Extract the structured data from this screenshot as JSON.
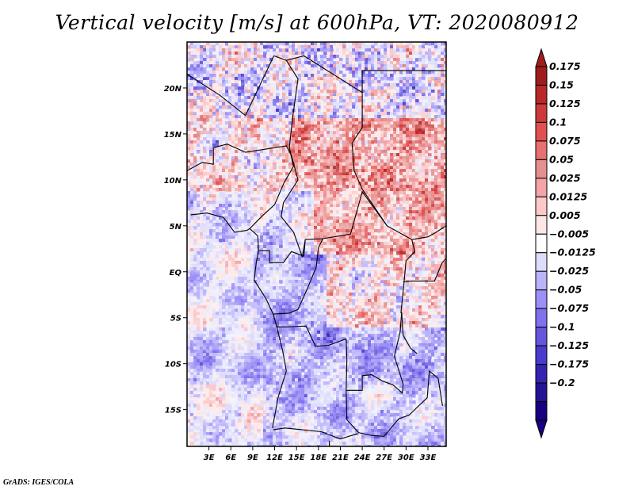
{
  "title": "Vertical velocity [m/s] at 600hPa, VT: 2020080912",
  "credit": "GrADS: IGES/COLA",
  "map": {
    "variable": "Vertical velocity",
    "units": "m/s",
    "level": "600hPa",
    "valid_time": "2020080912",
    "lat_range": [
      -19,
      25
    ],
    "lon_range": [
      0,
      35.5
    ],
    "lat_ticks": [
      {
        "value": 20,
        "label": "20N"
      },
      {
        "value": 15,
        "label": "15N"
      },
      {
        "value": 10,
        "label": "10N"
      },
      {
        "value": 5,
        "label": "5N"
      },
      {
        "value": 0,
        "label": "EQ"
      },
      {
        "value": -5,
        "label": "5S"
      },
      {
        "value": -10,
        "label": "10S"
      },
      {
        "value": -15,
        "label": "15S"
      }
    ],
    "lon_ticks": [
      {
        "value": 3,
        "label": "3E"
      },
      {
        "value": 6,
        "label": "6E"
      },
      {
        "value": 9,
        "label": "9E"
      },
      {
        "value": 12,
        "label": "12E"
      },
      {
        "value": 15,
        "label": "15E"
      },
      {
        "value": 18,
        "label": "18E"
      },
      {
        "value": 21,
        "label": "21E"
      },
      {
        "value": 24,
        "label": "24E"
      },
      {
        "value": 27,
        "label": "27E"
      },
      {
        "value": 30,
        "label": "30E"
      },
      {
        "value": 33,
        "label": "33E"
      }
    ]
  },
  "colorbar": {
    "labels": [
      "0.175",
      "0.15",
      "0.125",
      "0.1",
      "0.075",
      "0.05",
      "0.025",
      "0.0125",
      "0.005",
      "-0.005",
      "-0.0125",
      "-0.025",
      "-0.05",
      "-0.075",
      "-0.1",
      "-0.125",
      "-0.175",
      "-0.2"
    ],
    "colors": [
      "#a01c1c",
      "#b82828",
      "#cc3a3a",
      "#e05050",
      "#e87070",
      "#e49090",
      "#f4a4a4",
      "#fcc8c8",
      "#fde6e6",
      "#ffffff",
      "#dcdcfc",
      "#bcb4fa",
      "#9c90f8",
      "#7e72ee",
      "#6656dc",
      "#4a3ccc",
      "#3424b0",
      "#241494",
      "#180080"
    ],
    "top_arrow_color": "#a01c1c",
    "bottom_arrow_color": "#180080"
  }
}
